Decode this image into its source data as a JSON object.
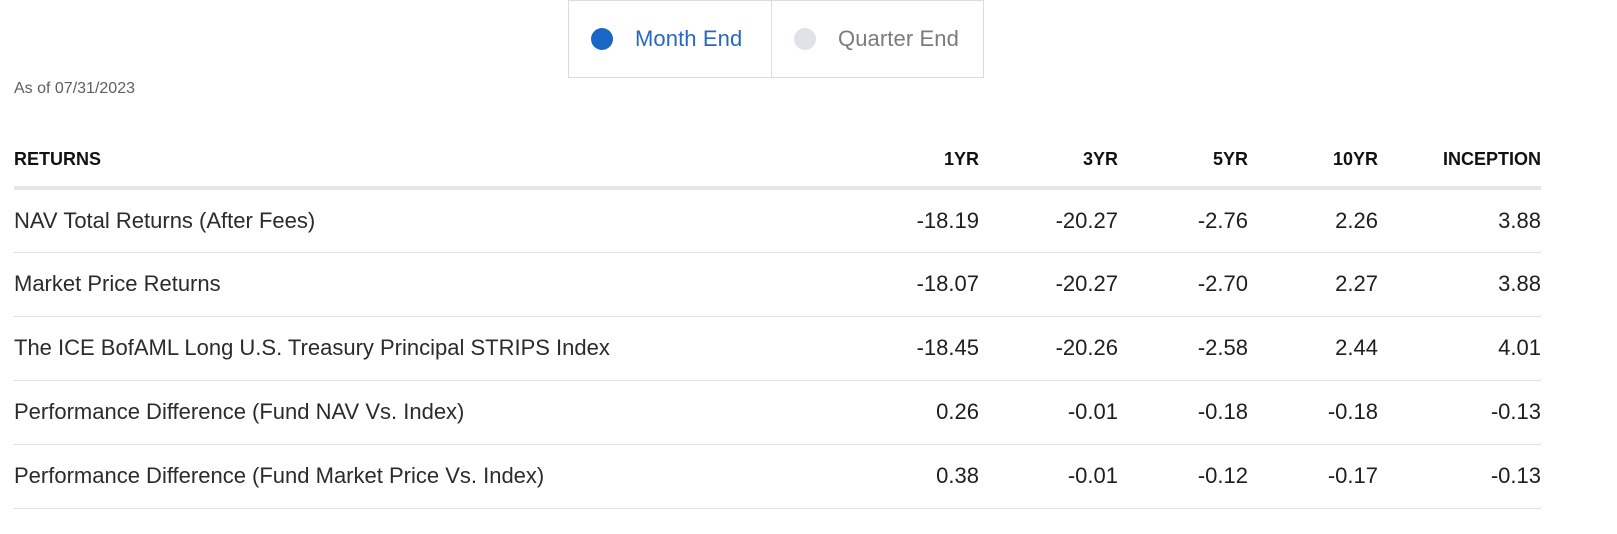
{
  "toggle": {
    "month_end_label": "Month End",
    "quarter_end_label": "Quarter End",
    "selected": "Month End"
  },
  "as_of": "As of 07/31/2023",
  "table": {
    "headers": {
      "label": "RETURNS",
      "yr1": "1YR",
      "yr3": "3YR",
      "yr5": "5YR",
      "yr10": "10YR",
      "inception": "INCEPTION"
    },
    "rows": [
      {
        "label": "NAV Total Returns (After Fees)",
        "yr1": "-18.19",
        "yr3": "-20.27",
        "yr5": "-2.76",
        "yr10": "2.26",
        "inception": "3.88"
      },
      {
        "label": "Market Price Returns",
        "yr1": "-18.07",
        "yr3": "-20.27",
        "yr5": "-2.70",
        "yr10": "2.27",
        "inception": "3.88"
      },
      {
        "label": "The ICE BofAML Long U.S. Treasury Principal STRIPS Index",
        "yr1": "-18.45",
        "yr3": "-20.26",
        "yr5": "-2.58",
        "yr10": "2.44",
        "inception": "4.01"
      },
      {
        "label": "Performance Difference (Fund NAV Vs. Index)",
        "yr1": "0.26",
        "yr3": "-0.01",
        "yr5": "-0.18",
        "yr10": "-0.18",
        "inception": "-0.13"
      },
      {
        "label": "Performance Difference (Fund Market Price Vs. Index)",
        "yr1": "0.38",
        "yr3": "-0.01",
        "yr5": "-0.12",
        "yr10": "-0.17",
        "inception": "-0.13"
      }
    ]
  },
  "colors": {
    "accent": "#1a66c6",
    "inactive_dot": "#dfe2e6",
    "border": "#dcdcdc"
  }
}
